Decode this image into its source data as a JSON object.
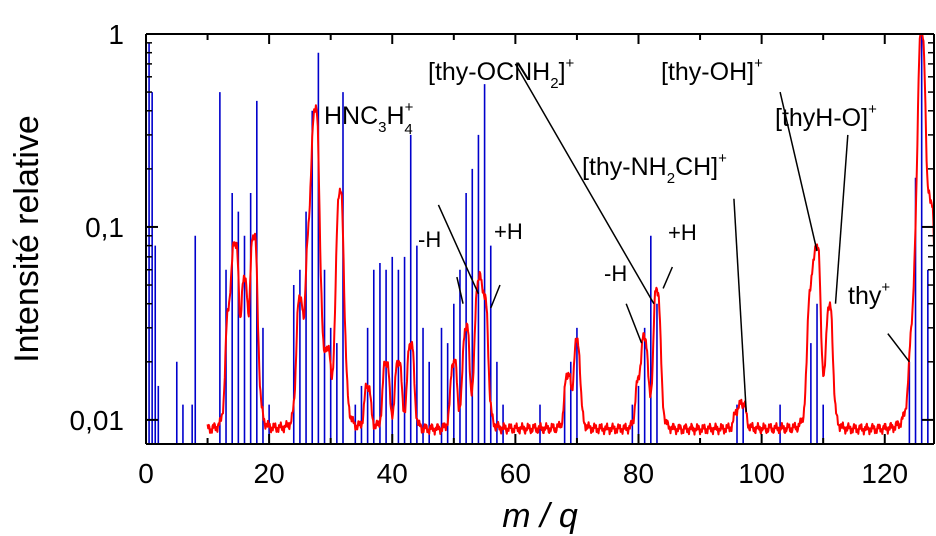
{
  "chart_data": {
    "type": "line",
    "title": "",
    "xlabel": "m / q",
    "ylabel": "Intensité relative",
    "xlim": [
      0,
      128
    ],
    "ylim": [
      0.0075,
      1
    ],
    "yscale": "log",
    "x_ticks": [
      0,
      20,
      40,
      60,
      80,
      100,
      120
    ],
    "x_tick_labels": [
      "0",
      "20",
      "40",
      "60",
      "80",
      "100",
      "120"
    ],
    "y_ticks": [
      0.01,
      0.1,
      1
    ],
    "y_tick_labels": [
      "0,01",
      "0,1",
      "1"
    ],
    "grid": false,
    "series": [
      {
        "color": "#ff0000",
        "style": "line",
        "baseline": 0.009,
        "peaks": [
          {
            "x": 13.5,
            "y": 0.035
          },
          {
            "x": 14.5,
            "y": 0.08
          },
          {
            "x": 16.0,
            "y": 0.05
          },
          {
            "x": 17.5,
            "y": 0.09
          },
          {
            "x": 25.0,
            "y": 0.04
          },
          {
            "x": 26.5,
            "y": 0.08
          },
          {
            "x": 27.5,
            "y": 0.4
          },
          {
            "x": 29.5,
            "y": 0.02
          },
          {
            "x": 31.5,
            "y": 0.15
          },
          {
            "x": 36.0,
            "y": 0.015
          },
          {
            "x": 39.0,
            "y": 0.02
          },
          {
            "x": 41.0,
            "y": 0.02
          },
          {
            "x": 43.0,
            "y": 0.025
          },
          {
            "x": 50.0,
            "y": 0.02
          },
          {
            "x": 52.0,
            "y": 0.03
          },
          {
            "x": 54.0,
            "y": 0.05
          },
          {
            "x": 55.0,
            "y": 0.04
          },
          {
            "x": 68.5,
            "y": 0.017
          },
          {
            "x": 70.0,
            "y": 0.025
          },
          {
            "x": 80.0,
            "y": 0.015
          },
          {
            "x": 81.0,
            "y": 0.026
          },
          {
            "x": 83.0,
            "y": 0.047
          },
          {
            "x": 96.0,
            "y": 0.011
          },
          {
            "x": 97.0,
            "y": 0.012
          },
          {
            "x": 108.0,
            "y": 0.045
          },
          {
            "x": 109.0,
            "y": 0.075
          },
          {
            "x": 111.0,
            "y": 0.038
          },
          {
            "x": 124.5,
            "y": 0.02
          },
          {
            "x": 126.0,
            "y": 1.0
          },
          {
            "x": 127.5,
            "y": 0.12
          }
        ]
      },
      {
        "color": "#0000cc",
        "style": "sticks",
        "sticks": [
          {
            "x": 0.5,
            "y": 0.9
          },
          {
            "x": 1.0,
            "y": 0.5
          },
          {
            "x": 1.5,
            "y": 0.08
          },
          {
            "x": 2.0,
            "y": 0.015
          },
          {
            "x": 5.0,
            "y": 0.02
          },
          {
            "x": 6.0,
            "y": 0.012
          },
          {
            "x": 7.5,
            "y": 0.012
          },
          {
            "x": 8.0,
            "y": 0.09
          },
          {
            "x": 12.0,
            "y": 0.5
          },
          {
            "x": 13.0,
            "y": 0.06
          },
          {
            "x": 14.0,
            "y": 0.15
          },
          {
            "x": 15.0,
            "y": 0.12
          },
          {
            "x": 16.0,
            "y": 0.09
          },
          {
            "x": 17.0,
            "y": 0.15
          },
          {
            "x": 18.0,
            "y": 0.45
          },
          {
            "x": 19.0,
            "y": 0.03
          },
          {
            "x": 20.0,
            "y": 0.012
          },
          {
            "x": 24.0,
            "y": 0.05
          },
          {
            "x": 25.0,
            "y": 0.06
          },
          {
            "x": 26.0,
            "y": 0.12
          },
          {
            "x": 27.0,
            "y": 0.4
          },
          {
            "x": 28.0,
            "y": 0.8
          },
          {
            "x": 29.0,
            "y": 0.06
          },
          {
            "x": 30.0,
            "y": 0.03
          },
          {
            "x": 31.0,
            "y": 0.025
          },
          {
            "x": 32.0,
            "y": 0.5
          },
          {
            "x": 34.0,
            "y": 0.012
          },
          {
            "x": 35.0,
            "y": 0.015
          },
          {
            "x": 36.0,
            "y": 0.03
          },
          {
            "x": 37.0,
            "y": 0.06
          },
          {
            "x": 38.0,
            "y": 0.065
          },
          {
            "x": 39.0,
            "y": 0.06
          },
          {
            "x": 40.0,
            "y": 0.07
          },
          {
            "x": 41.0,
            "y": 0.06
          },
          {
            "x": 42.0,
            "y": 0.07
          },
          {
            "x": 43.0,
            "y": 0.3
          },
          {
            "x": 44.0,
            "y": 0.08
          },
          {
            "x": 45.0,
            "y": 0.03
          },
          {
            "x": 46.0,
            "y": 0.02
          },
          {
            "x": 48.0,
            "y": 0.03
          },
          {
            "x": 49.0,
            "y": 0.025
          },
          {
            "x": 50.0,
            "y": 0.04
          },
          {
            "x": 51.0,
            "y": 0.06
          },
          {
            "x": 52.0,
            "y": 0.15
          },
          {
            "x": 53.0,
            "y": 0.2
          },
          {
            "x": 54.0,
            "y": 0.3
          },
          {
            "x": 55.0,
            "y": 0.55
          },
          {
            "x": 56.0,
            "y": 0.08
          },
          {
            "x": 57.0,
            "y": 0.02
          },
          {
            "x": 58.0,
            "y": 0.012
          },
          {
            "x": 64.0,
            "y": 0.012
          },
          {
            "x": 68.0,
            "y": 0.015
          },
          {
            "x": 69.0,
            "y": 0.02
          },
          {
            "x": 70.0,
            "y": 0.03
          },
          {
            "x": 79.0,
            "y": 0.012
          },
          {
            "x": 80.0,
            "y": 0.015
          },
          {
            "x": 81.0,
            "y": 0.03
          },
          {
            "x": 82.0,
            "y": 0.09
          },
          {
            "x": 83.0,
            "y": 0.04
          },
          {
            "x": 96.0,
            "y": 0.012
          },
          {
            "x": 97.0,
            "y": 0.012
          },
          {
            "x": 103.0,
            "y": 0.012
          },
          {
            "x": 108.0,
            "y": 0.025
          },
          {
            "x": 109.0,
            "y": 0.04
          },
          {
            "x": 110.0,
            "y": 0.012
          },
          {
            "x": 124.0,
            "y": 0.02
          },
          {
            "x": 125.0,
            "y": 0.18
          },
          {
            "x": 126.0,
            "y": 1.0
          },
          {
            "x": 127.0,
            "y": 0.06
          }
        ]
      }
    ],
    "annotations": [
      {
        "text": "HNC",
        "sub1": "3",
        "mid": "H",
        "sup": "+",
        "sub2": "4",
        "tx": 324,
        "ty": 124
      },
      {
        "text": "[thy-OCNH",
        "sub1": "2",
        "tail": "]",
        "sup": "+",
        "tx": 428,
        "ty": 80
      },
      {
        "text": "[thy-OH]",
        "sup": "+",
        "tx": 661,
        "ty": 80
      },
      {
        "text": "[thyH-O]",
        "sup": "+",
        "tx": 775,
        "ty": 126
      },
      {
        "text": "[thy-NH",
        "sub1": "2",
        "tail": "CH]",
        "sup": "+",
        "tx": 582,
        "ty": 175
      },
      {
        "text": "thy",
        "sup": "+",
        "tx": 848,
        "ty": 304
      },
      {
        "text": "-H",
        "tx": 418,
        "ty": 247
      },
      {
        "text": "+H",
        "tx": 494,
        "ty": 239
      },
      {
        "text": "-H",
        "tx": 604,
        "ty": 281
      },
      {
        "text": "+H",
        "tx": 668,
        "ty": 240
      }
    ]
  }
}
